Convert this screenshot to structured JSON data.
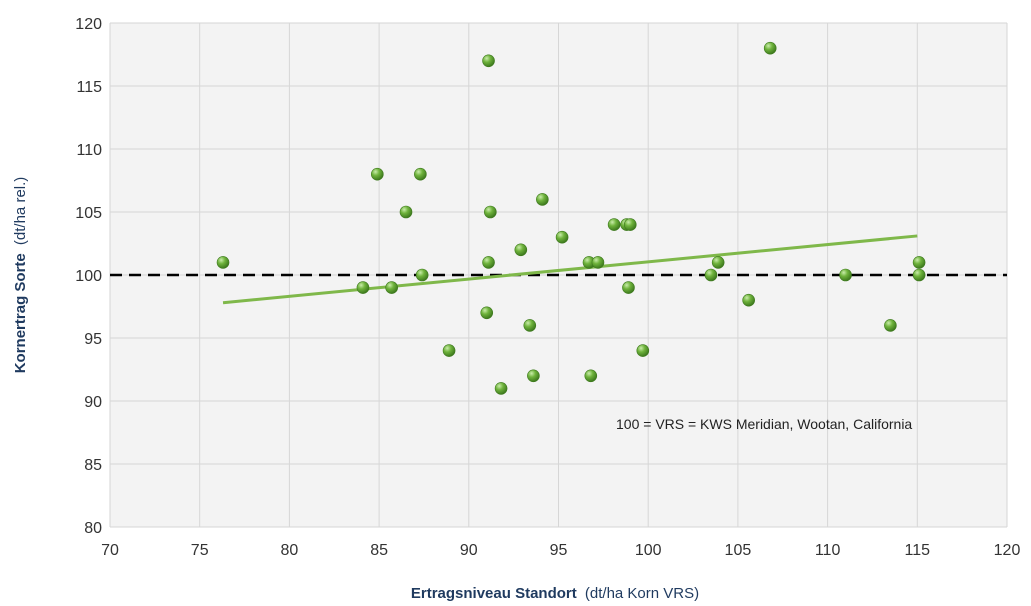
{
  "chart_data": {
    "type": "scatter",
    "title": "",
    "xlabel_bold": "Ertragsniveau Standort",
    "xlabel_unit": "(dt/ha Korn VRS)",
    "ylabel_bold": "Kornertrag Sorte",
    "ylabel_unit": "(dt/ha rel.)",
    "xlim": [
      70,
      120
    ],
    "ylim": [
      80,
      120
    ],
    "xticks": [
      70,
      75,
      80,
      85,
      90,
      95,
      100,
      105,
      110,
      115,
      120
    ],
    "yticks": [
      80,
      85,
      90,
      95,
      100,
      105,
      110,
      115,
      120
    ],
    "grid": true,
    "annotation": "100 = VRS = KWS Meridian, Wootan, California",
    "reference_line": {
      "y": 100,
      "style": "dashed",
      "color": "#000000"
    },
    "trendline": {
      "x": [
        76.3,
        115
      ],
      "y": [
        97.8,
        103.1
      ],
      "color": "#7fb84a"
    },
    "point_color": "#6aa83a",
    "points": [
      {
        "x": 76.3,
        "y": 101
      },
      {
        "x": 84.1,
        "y": 99
      },
      {
        "x": 84.9,
        "y": 108
      },
      {
        "x": 85.7,
        "y": 99
      },
      {
        "x": 86.5,
        "y": 105
      },
      {
        "x": 87.3,
        "y": 108
      },
      {
        "x": 87.4,
        "y": 100
      },
      {
        "x": 88.9,
        "y": 94
      },
      {
        "x": 91.0,
        "y": 97
      },
      {
        "x": 91.1,
        "y": 101
      },
      {
        "x": 91.1,
        "y": 117
      },
      {
        "x": 91.2,
        "y": 105
      },
      {
        "x": 91.8,
        "y": 91
      },
      {
        "x": 92.9,
        "y": 102
      },
      {
        "x": 93.4,
        "y": 96
      },
      {
        "x": 93.6,
        "y": 92
      },
      {
        "x": 94.1,
        "y": 106
      },
      {
        "x": 95.2,
        "y": 103
      },
      {
        "x": 96.7,
        "y": 101
      },
      {
        "x": 96.8,
        "y": 92
      },
      {
        "x": 97.2,
        "y": 101
      },
      {
        "x": 98.1,
        "y": 104
      },
      {
        "x": 98.8,
        "y": 104
      },
      {
        "x": 98.9,
        "y": 99
      },
      {
        "x": 99.0,
        "y": 104
      },
      {
        "x": 99.7,
        "y": 94
      },
      {
        "x": 103.5,
        "y": 100
      },
      {
        "x": 103.9,
        "y": 101
      },
      {
        "x": 105.6,
        "y": 98
      },
      {
        "x": 106.8,
        "y": 118
      },
      {
        "x": 111.0,
        "y": 100
      },
      {
        "x": 113.5,
        "y": 96
      },
      {
        "x": 115.1,
        "y": 101
      },
      {
        "x": 115.1,
        "y": 100
      }
    ]
  }
}
